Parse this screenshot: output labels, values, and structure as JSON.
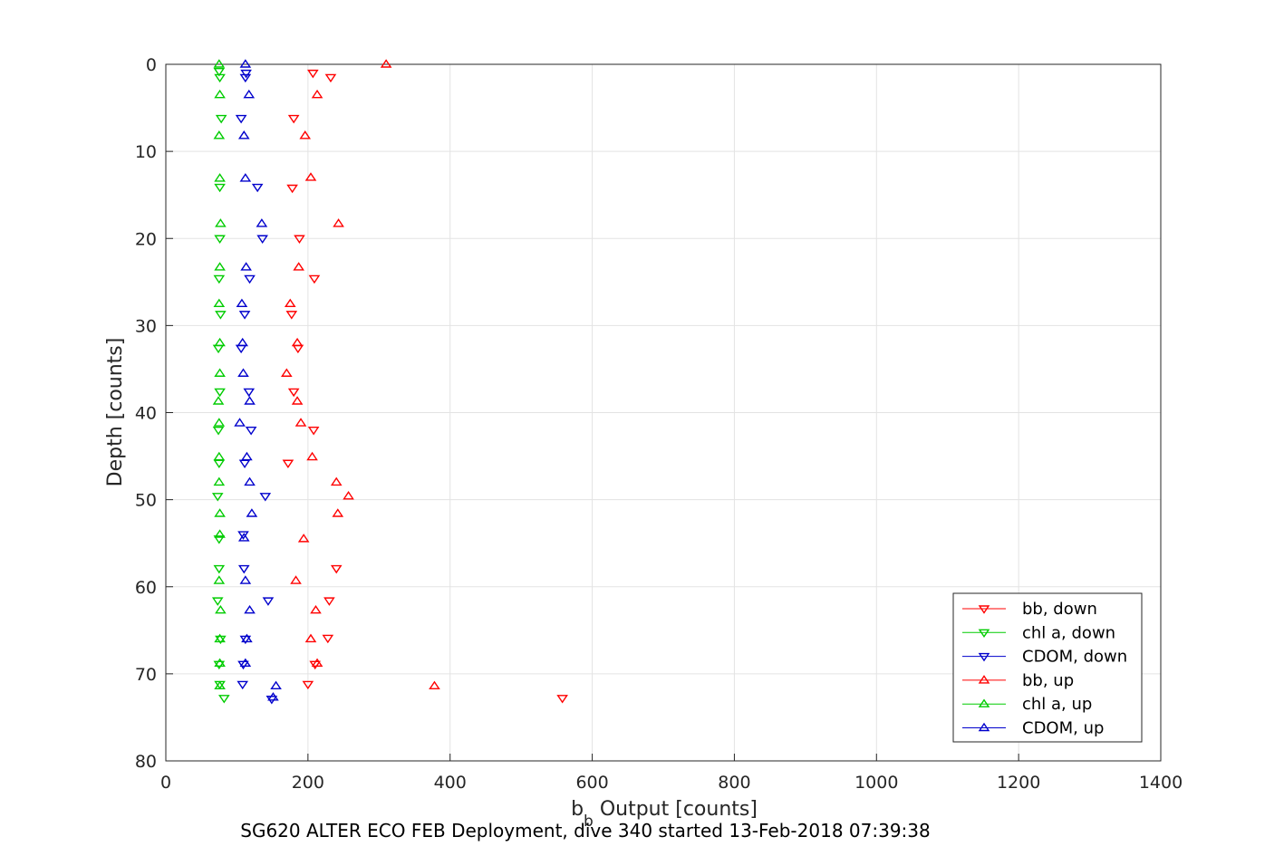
{
  "chart_data": {
    "type": "scatter",
    "title": "",
    "caption": "SG620 ALTER ECO FEB Deployment, dive 340 started 13-Feb-2018 07:39:38",
    "xlabel": {
      "main": "b",
      "subscript": "b",
      "rest": " Output [counts]"
    },
    "ylabel": "Depth [counts]",
    "xlim": [
      0,
      1400
    ],
    "ylim": [
      0,
      80
    ],
    "y_reversed": true,
    "x_ticks": [
      0,
      200,
      400,
      600,
      800,
      1000,
      1200,
      1400
    ],
    "y_ticks": [
      0,
      10,
      20,
      30,
      40,
      50,
      60,
      70,
      80
    ],
    "grid": true,
    "legend_position": "bottom-right",
    "series": [
      {
        "name": "bb, down",
        "color": "#ff0000",
        "marker": "triangle-down",
        "points": [
          [
            207,
            1
          ],
          [
            232,
            1.5
          ],
          [
            180,
            6.2
          ],
          [
            178,
            14.2
          ],
          [
            188,
            20
          ],
          [
            209,
            24.6
          ],
          [
            177,
            28.7
          ],
          [
            186,
            32.6
          ],
          [
            180,
            37.6
          ],
          [
            208,
            42
          ],
          [
            172,
            45.8
          ],
          [
            240,
            57.9
          ],
          [
            230,
            61.6
          ],
          [
            228,
            65.9
          ],
          [
            210,
            68.9
          ],
          [
            200,
            71.2
          ],
          [
            558,
            72.8
          ]
        ]
      },
      {
        "name": "chl a, down",
        "color": "#00cc00",
        "marker": "triangle-down",
        "points": [
          [
            75,
            0.8
          ],
          [
            76,
            1.5
          ],
          [
            78,
            6.2
          ],
          [
            76,
            14.1
          ],
          [
            76,
            20
          ],
          [
            75,
            24.6
          ],
          [
            77,
            28.7
          ],
          [
            74,
            32.6
          ],
          [
            76,
            37.6
          ],
          [
            74,
            42
          ],
          [
            75,
            45.8
          ],
          [
            73,
            49.6
          ],
          [
            75,
            54.5
          ],
          [
            75,
            57.9
          ],
          [
            73,
            61.6
          ],
          [
            77,
            66
          ],
          [
            75,
            68.9
          ],
          [
            76,
            71.2
          ],
          [
            82,
            72.8
          ]
        ]
      },
      {
        "name": "CDOM, down",
        "color": "#0000cc",
        "marker": "triangle-down",
        "points": [
          [
            113,
            1
          ],
          [
            112,
            1.5
          ],
          [
            106,
            6.2
          ],
          [
            129,
            14.1
          ],
          [
            136,
            20
          ],
          [
            118,
            24.6
          ],
          [
            111,
            28.7
          ],
          [
            106,
            32.6
          ],
          [
            117,
            37.6
          ],
          [
            120,
            42
          ],
          [
            111,
            45.8
          ],
          [
            140,
            49.6
          ],
          [
            109,
            54
          ],
          [
            110,
            57.9
          ],
          [
            144,
            61.6
          ],
          [
            112,
            66
          ],
          [
            109,
            68.9
          ],
          [
            108,
            71.2
          ],
          [
            149,
            72.9
          ]
        ]
      },
      {
        "name": "bb, up",
        "color": "#ff0000",
        "marker": "triangle-up",
        "points": [
          [
            310,
            0
          ],
          [
            213,
            3.5
          ],
          [
            196,
            8.2
          ],
          [
            204,
            13
          ],
          [
            243,
            18.3
          ],
          [
            187,
            23.3
          ],
          [
            175,
            27.5
          ],
          [
            185,
            32
          ],
          [
            170,
            35.5
          ],
          [
            185,
            38.7
          ],
          [
            190,
            41.2
          ],
          [
            206,
            45.1
          ],
          [
            240,
            48
          ],
          [
            257,
            49.6
          ],
          [
            242,
            51.6
          ],
          [
            194,
            54.5
          ],
          [
            183,
            59.3
          ],
          [
            211,
            62.7
          ],
          [
            204,
            66
          ],
          [
            213,
            68.8
          ],
          [
            378,
            71.4
          ]
        ]
      },
      {
        "name": "chl a, up",
        "color": "#00cc00",
        "marker": "triangle-up",
        "points": [
          [
            75,
            0
          ],
          [
            76,
            3.5
          ],
          [
            75,
            8.2
          ],
          [
            76,
            13.1
          ],
          [
            77,
            18.3
          ],
          [
            76,
            23.3
          ],
          [
            75,
            27.5
          ],
          [
            76,
            32
          ],
          [
            76,
            35.5
          ],
          [
            74,
            38.7
          ],
          [
            75,
            41.2
          ],
          [
            75,
            45.1
          ],
          [
            75,
            48
          ],
          [
            76,
            51.6
          ],
          [
            76,
            54
          ],
          [
            75,
            59.3
          ],
          [
            77,
            62.7
          ],
          [
            76,
            66
          ],
          [
            76,
            68.8
          ],
          [
            76,
            71.4
          ]
        ]
      },
      {
        "name": "CDOM, up",
        "color": "#0000cc",
        "marker": "triangle-up",
        "points": [
          [
            112,
            0
          ],
          [
            117,
            3.5
          ],
          [
            110,
            8.2
          ],
          [
            112,
            13.1
          ],
          [
            135,
            18.3
          ],
          [
            113,
            23.3
          ],
          [
            107,
            27.5
          ],
          [
            108,
            32
          ],
          [
            109,
            35.5
          ],
          [
            118,
            38.7
          ],
          [
            104,
            41.2
          ],
          [
            114,
            45.1
          ],
          [
            118,
            48
          ],
          [
            121,
            51.6
          ],
          [
            110,
            54.4
          ],
          [
            112,
            59.3
          ],
          [
            118,
            62.7
          ],
          [
            114,
            66
          ],
          [
            112,
            68.8
          ],
          [
            155,
            71.4
          ],
          [
            151,
            72.7
          ]
        ]
      }
    ]
  }
}
